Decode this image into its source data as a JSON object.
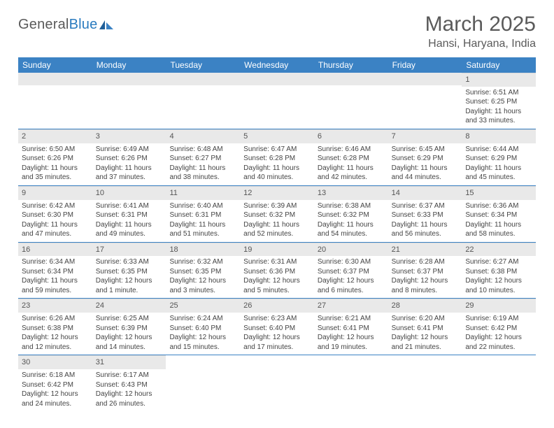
{
  "logo": {
    "text1": "General",
    "text2": "Blue"
  },
  "title": "March 2025",
  "location": "Hansi, Haryana, India",
  "colors": {
    "header_bg": "#3b82c4",
    "header_text": "#ffffff",
    "daynum_bg": "#e9e9e9",
    "border": "#3b82c4",
    "body_text": "#444444",
    "title_text": "#5a5a5a"
  },
  "day_labels": [
    "Sunday",
    "Monday",
    "Tuesday",
    "Wednesday",
    "Thursday",
    "Friday",
    "Saturday"
  ],
  "weeks": [
    [
      {
        "empty": true
      },
      {
        "empty": true
      },
      {
        "empty": true
      },
      {
        "empty": true
      },
      {
        "empty": true
      },
      {
        "empty": true
      },
      {
        "n": "1",
        "sunrise": "Sunrise: 6:51 AM",
        "sunset": "Sunset: 6:25 PM",
        "dl1": "Daylight: 11 hours",
        "dl2": "and 33 minutes."
      }
    ],
    [
      {
        "n": "2",
        "sunrise": "Sunrise: 6:50 AM",
        "sunset": "Sunset: 6:26 PM",
        "dl1": "Daylight: 11 hours",
        "dl2": "and 35 minutes."
      },
      {
        "n": "3",
        "sunrise": "Sunrise: 6:49 AM",
        "sunset": "Sunset: 6:26 PM",
        "dl1": "Daylight: 11 hours",
        "dl2": "and 37 minutes."
      },
      {
        "n": "4",
        "sunrise": "Sunrise: 6:48 AM",
        "sunset": "Sunset: 6:27 PM",
        "dl1": "Daylight: 11 hours",
        "dl2": "and 38 minutes."
      },
      {
        "n": "5",
        "sunrise": "Sunrise: 6:47 AM",
        "sunset": "Sunset: 6:28 PM",
        "dl1": "Daylight: 11 hours",
        "dl2": "and 40 minutes."
      },
      {
        "n": "6",
        "sunrise": "Sunrise: 6:46 AM",
        "sunset": "Sunset: 6:28 PM",
        "dl1": "Daylight: 11 hours",
        "dl2": "and 42 minutes."
      },
      {
        "n": "7",
        "sunrise": "Sunrise: 6:45 AM",
        "sunset": "Sunset: 6:29 PM",
        "dl1": "Daylight: 11 hours",
        "dl2": "and 44 minutes."
      },
      {
        "n": "8",
        "sunrise": "Sunrise: 6:44 AM",
        "sunset": "Sunset: 6:29 PM",
        "dl1": "Daylight: 11 hours",
        "dl2": "and 45 minutes."
      }
    ],
    [
      {
        "n": "9",
        "sunrise": "Sunrise: 6:42 AM",
        "sunset": "Sunset: 6:30 PM",
        "dl1": "Daylight: 11 hours",
        "dl2": "and 47 minutes."
      },
      {
        "n": "10",
        "sunrise": "Sunrise: 6:41 AM",
        "sunset": "Sunset: 6:31 PM",
        "dl1": "Daylight: 11 hours",
        "dl2": "and 49 minutes."
      },
      {
        "n": "11",
        "sunrise": "Sunrise: 6:40 AM",
        "sunset": "Sunset: 6:31 PM",
        "dl1": "Daylight: 11 hours",
        "dl2": "and 51 minutes."
      },
      {
        "n": "12",
        "sunrise": "Sunrise: 6:39 AM",
        "sunset": "Sunset: 6:32 PM",
        "dl1": "Daylight: 11 hours",
        "dl2": "and 52 minutes."
      },
      {
        "n": "13",
        "sunrise": "Sunrise: 6:38 AM",
        "sunset": "Sunset: 6:32 PM",
        "dl1": "Daylight: 11 hours",
        "dl2": "and 54 minutes."
      },
      {
        "n": "14",
        "sunrise": "Sunrise: 6:37 AM",
        "sunset": "Sunset: 6:33 PM",
        "dl1": "Daylight: 11 hours",
        "dl2": "and 56 minutes."
      },
      {
        "n": "15",
        "sunrise": "Sunrise: 6:36 AM",
        "sunset": "Sunset: 6:34 PM",
        "dl1": "Daylight: 11 hours",
        "dl2": "and 58 minutes."
      }
    ],
    [
      {
        "n": "16",
        "sunrise": "Sunrise: 6:34 AM",
        "sunset": "Sunset: 6:34 PM",
        "dl1": "Daylight: 11 hours",
        "dl2": "and 59 minutes."
      },
      {
        "n": "17",
        "sunrise": "Sunrise: 6:33 AM",
        "sunset": "Sunset: 6:35 PM",
        "dl1": "Daylight: 12 hours",
        "dl2": "and 1 minute."
      },
      {
        "n": "18",
        "sunrise": "Sunrise: 6:32 AM",
        "sunset": "Sunset: 6:35 PM",
        "dl1": "Daylight: 12 hours",
        "dl2": "and 3 minutes."
      },
      {
        "n": "19",
        "sunrise": "Sunrise: 6:31 AM",
        "sunset": "Sunset: 6:36 PM",
        "dl1": "Daylight: 12 hours",
        "dl2": "and 5 minutes."
      },
      {
        "n": "20",
        "sunrise": "Sunrise: 6:30 AM",
        "sunset": "Sunset: 6:37 PM",
        "dl1": "Daylight: 12 hours",
        "dl2": "and 6 minutes."
      },
      {
        "n": "21",
        "sunrise": "Sunrise: 6:28 AM",
        "sunset": "Sunset: 6:37 PM",
        "dl1": "Daylight: 12 hours",
        "dl2": "and 8 minutes."
      },
      {
        "n": "22",
        "sunrise": "Sunrise: 6:27 AM",
        "sunset": "Sunset: 6:38 PM",
        "dl1": "Daylight: 12 hours",
        "dl2": "and 10 minutes."
      }
    ],
    [
      {
        "n": "23",
        "sunrise": "Sunrise: 6:26 AM",
        "sunset": "Sunset: 6:38 PM",
        "dl1": "Daylight: 12 hours",
        "dl2": "and 12 minutes."
      },
      {
        "n": "24",
        "sunrise": "Sunrise: 6:25 AM",
        "sunset": "Sunset: 6:39 PM",
        "dl1": "Daylight: 12 hours",
        "dl2": "and 14 minutes."
      },
      {
        "n": "25",
        "sunrise": "Sunrise: 6:24 AM",
        "sunset": "Sunset: 6:40 PM",
        "dl1": "Daylight: 12 hours",
        "dl2": "and 15 minutes."
      },
      {
        "n": "26",
        "sunrise": "Sunrise: 6:23 AM",
        "sunset": "Sunset: 6:40 PM",
        "dl1": "Daylight: 12 hours",
        "dl2": "and 17 minutes."
      },
      {
        "n": "27",
        "sunrise": "Sunrise: 6:21 AM",
        "sunset": "Sunset: 6:41 PM",
        "dl1": "Daylight: 12 hours",
        "dl2": "and 19 minutes."
      },
      {
        "n": "28",
        "sunrise": "Sunrise: 6:20 AM",
        "sunset": "Sunset: 6:41 PM",
        "dl1": "Daylight: 12 hours",
        "dl2": "and 21 minutes."
      },
      {
        "n": "29",
        "sunrise": "Sunrise: 6:19 AM",
        "sunset": "Sunset: 6:42 PM",
        "dl1": "Daylight: 12 hours",
        "dl2": "and 22 minutes."
      }
    ],
    [
      {
        "n": "30",
        "sunrise": "Sunrise: 6:18 AM",
        "sunset": "Sunset: 6:42 PM",
        "dl1": "Daylight: 12 hours",
        "dl2": "and 24 minutes."
      },
      {
        "n": "31",
        "sunrise": "Sunrise: 6:17 AM",
        "sunset": "Sunset: 6:43 PM",
        "dl1": "Daylight: 12 hours",
        "dl2": "and 26 minutes."
      },
      {
        "trailing": true
      },
      {
        "trailing": true
      },
      {
        "trailing": true
      },
      {
        "trailing": true
      },
      {
        "trailing": true
      }
    ]
  ]
}
